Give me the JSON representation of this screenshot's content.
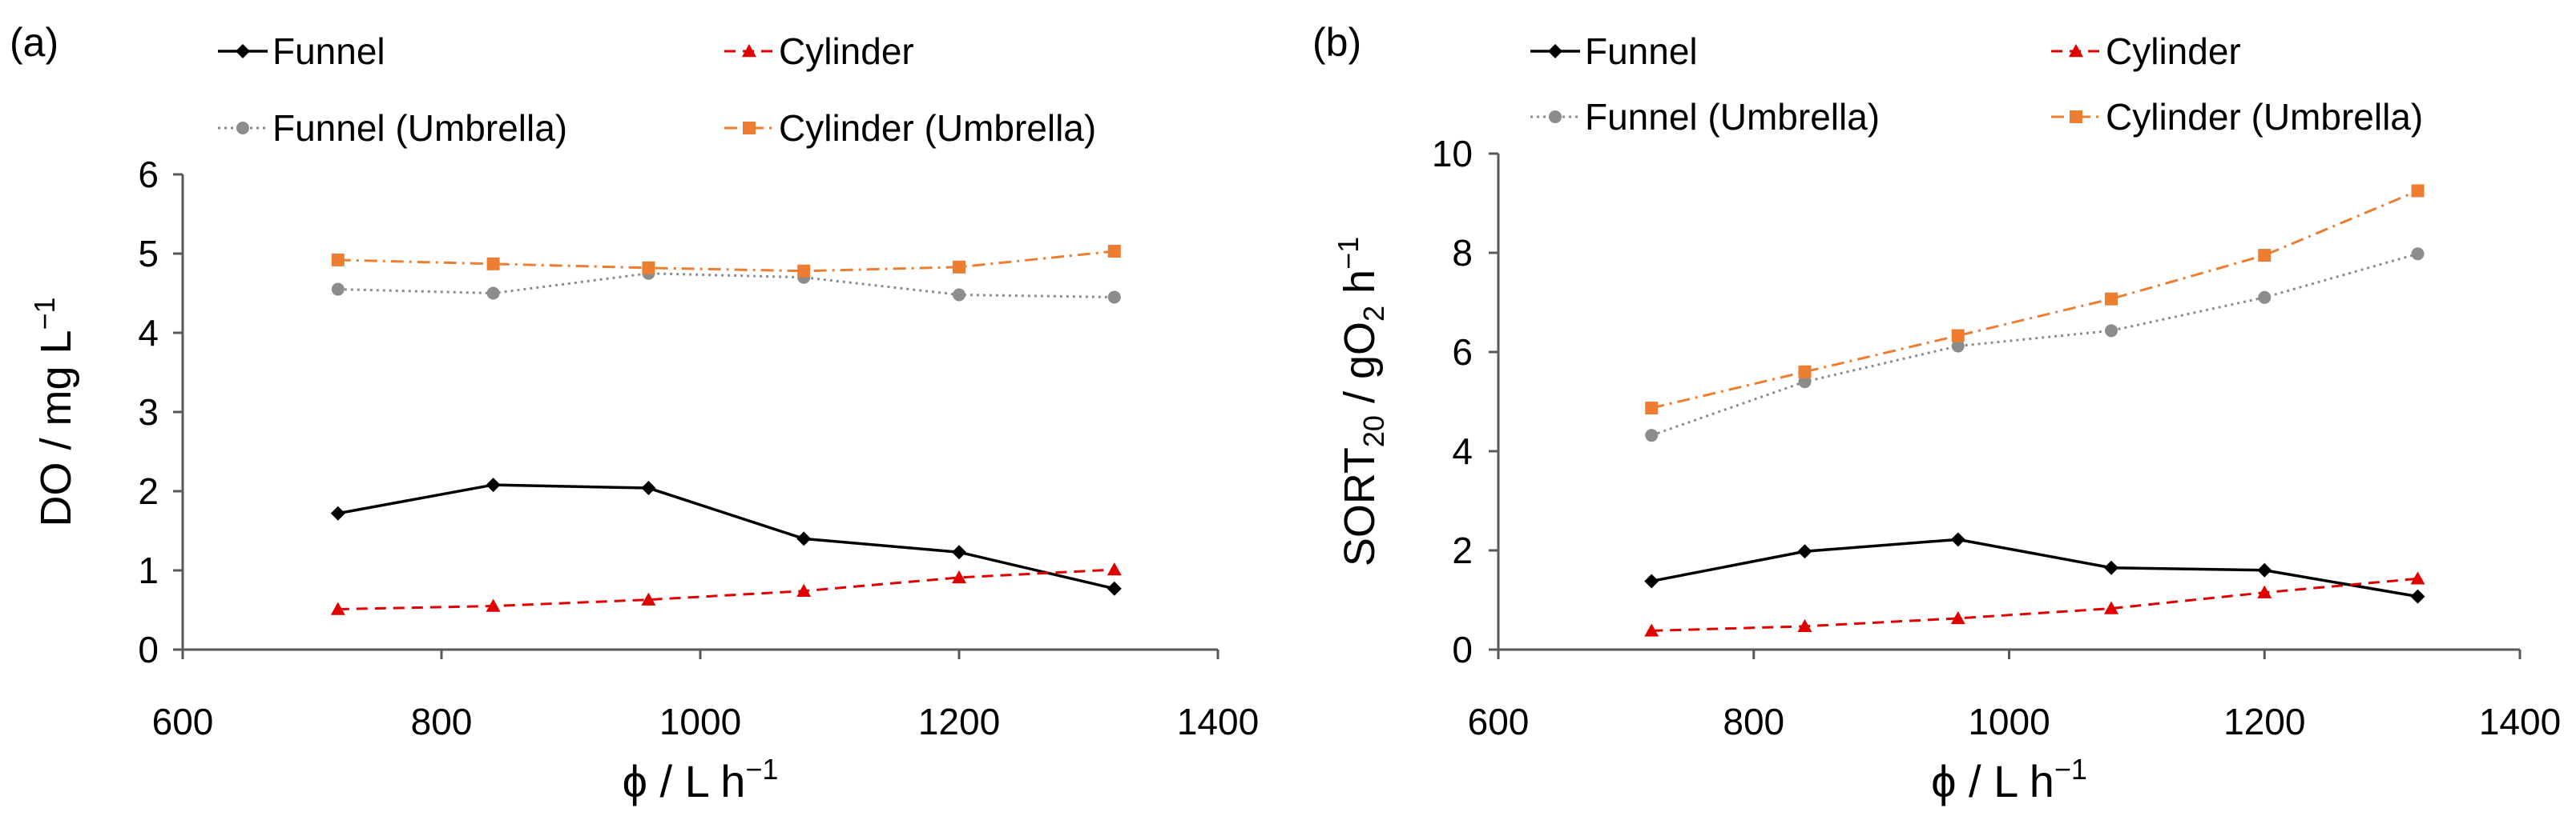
{
  "chart_data": [
    {
      "type": "line",
      "panel_label": "(a)",
      "ylabel_main": "DO / mg L",
      "ylabel_sup": "−1",
      "xlabel_main": "ϕ / L h",
      "xlabel_sup": "−1",
      "xlim": [
        600,
        1400
      ],
      "ylim": [
        0,
        6
      ],
      "xticks": [
        600,
        800,
        1000,
        1200,
        1400
      ],
      "yticks": [
        0,
        1,
        2,
        3,
        4,
        5,
        6
      ],
      "x": [
        720,
        840,
        960,
        1080,
        1200,
        1320
      ],
      "series": [
        {
          "name": "Funnel",
          "color": "#000000",
          "marker": "diamond",
          "dash": "solid",
          "values": [
            1.72,
            2.08,
            2.04,
            1.4,
            1.23,
            0.77
          ]
        },
        {
          "name": "Cylinder",
          "color": "#e00000",
          "marker": "triangle",
          "dash": "dashed",
          "values": [
            0.51,
            0.55,
            0.63,
            0.74,
            0.91,
            1.01
          ]
        },
        {
          "name": "Funnel (Umbrella)",
          "color": "#8c8c8c",
          "marker": "circle",
          "dash": "dotted",
          "values": [
            4.55,
            4.5,
            4.75,
            4.7,
            4.48,
            4.45
          ]
        },
        {
          "name": "Cylinder (Umbrella)",
          "color": "#ed7d31",
          "marker": "square",
          "dash": "dashdot",
          "values": [
            4.92,
            4.87,
            4.82,
            4.78,
            4.83,
            5.03
          ]
        }
      ]
    },
    {
      "type": "line",
      "panel_label": "(b)",
      "ylabel_main": "SORT",
      "ylabel_sub1": "20",
      "ylabel_mid": " / gO",
      "ylabel_sub2": "2",
      "ylabel_end": " h",
      "ylabel_sup": "−1",
      "xlabel_main": "ϕ / L h",
      "xlabel_sup": "−1",
      "xlim": [
        600,
        1400
      ],
      "ylim": [
        0,
        10
      ],
      "xticks": [
        600,
        800,
        1000,
        1200,
        1400
      ],
      "yticks": [
        0,
        2,
        4,
        6,
        8,
        10
      ],
      "x": [
        720,
        840,
        960,
        1080,
        1200,
        1320
      ],
      "series": [
        {
          "name": "Funnel",
          "color": "#000000",
          "marker": "diamond",
          "dash": "solid",
          "values": [
            1.38,
            1.98,
            2.22,
            1.65,
            1.6,
            1.07
          ]
        },
        {
          "name": "Cylinder",
          "color": "#e00000",
          "marker": "triangle",
          "dash": "dashed",
          "values": [
            0.38,
            0.47,
            0.63,
            0.83,
            1.15,
            1.43
          ]
        },
        {
          "name": "Funnel (Umbrella)",
          "color": "#8c8c8c",
          "marker": "circle",
          "dash": "dotted",
          "values": [
            4.32,
            5.4,
            6.12,
            6.43,
            7.1,
            7.98
          ]
        },
        {
          "name": "Cylinder (Umbrella)",
          "color": "#ed7d31",
          "marker": "square",
          "dash": "dashdot",
          "values": [
            4.87,
            5.6,
            6.33,
            7.07,
            7.95,
            9.25
          ]
        }
      ]
    }
  ]
}
